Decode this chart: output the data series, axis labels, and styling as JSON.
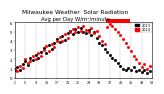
{
  "title": "Milwaukee Weather  Solar Radiation",
  "subtitle": "Avg per Day W/m²/minute",
  "title_fontsize": 4.2,
  "subtitle_fontsize": 3.8,
  "background_color": "#ffffff",
  "plot_bg_color": "#ffffff",
  "grid_color": "#aaaaaa",
  "x_min": 1,
  "x_max": 53,
  "y_min": 0,
  "y_max": 6,
  "series": [
    {
      "label": "2013",
      "color": "#000000",
      "marker": "s",
      "markersize": 1.0,
      "x": [
        1,
        2,
        3,
        4,
        5,
        6,
        7,
        8,
        9,
        10,
        11,
        12,
        13,
        14,
        15,
        16,
        17,
        18,
        19,
        20,
        21,
        22,
        23,
        24,
        25,
        26,
        27,
        28,
        29,
        30,
        31,
        32,
        33,
        34,
        35,
        36,
        37,
        38,
        39,
        40,
        41,
        42,
        43,
        44,
        45,
        46,
        47,
        48,
        49,
        50,
        51,
        52
      ],
      "y": [
        0.8,
        1.2,
        0.9,
        1.5,
        1.8,
        1.4,
        2.2,
        1.9,
        2.5,
        2.1,
        2.8,
        3.2,
        2.7,
        3.5,
        3.1,
        3.8,
        4.2,
        3.9,
        4.5,
        4.1,
        4.8,
        5.1,
        4.7,
        5.3,
        4.9,
        5.4,
        5.0,
        4.8,
        5.2,
        4.6,
        4.9,
        4.3,
        3.8,
        3.5,
        3.1,
        2.8,
        2.5,
        2.1,
        1.9,
        1.6,
        1.3,
        1.0,
        0.9,
        1.1,
        0.8,
        1.2,
        0.7,
        0.9,
        0.6,
        0.8,
        0.5,
        0.7
      ]
    },
    {
      "label": "2014",
      "color": "#ff0000",
      "marker": "s",
      "markersize": 1.0,
      "x": [
        1,
        2,
        3,
        4,
        5,
        6,
        7,
        8,
        9,
        10,
        11,
        12,
        13,
        14,
        15,
        16,
        17,
        18,
        19,
        20,
        21,
        22,
        23,
        24,
        25,
        26,
        27,
        28,
        29,
        30,
        31,
        32,
        33,
        34,
        35,
        36,
        37,
        38,
        39,
        40,
        41,
        42,
        43,
        44,
        45,
        46,
        47,
        48,
        49,
        50,
        51,
        52
      ],
      "y": [
        1.0,
        0.7,
        1.3,
        1.1,
        2.0,
        1.6,
        1.8,
        2.4,
        2.0,
        2.7,
        2.4,
        3.0,
        3.4,
        2.9,
        3.7,
        3.3,
        4.0,
        4.4,
        4.0,
        4.7,
        4.3,
        5.0,
        5.3,
        4.9,
        5.5,
        5.1,
        5.6,
        5.2,
        5.0,
        5.4,
        4.8,
        5.1,
        4.5,
        4.0,
        3.7,
        5.5,
        5.8,
        5.6,
        5.3,
        5.0,
        4.6,
        4.2,
        3.8,
        3.3,
        2.9,
        2.4,
        2.0,
        1.6,
        1.2,
        1.5,
        1.0,
        1.3
      ]
    }
  ],
  "legend_labels": [
    "2013",
    "2014"
  ],
  "legend_colors": [
    "#000000",
    "#ff0000"
  ],
  "xtick_positions": [
    1,
    5,
    9,
    13,
    17,
    21,
    25,
    29,
    33,
    37,
    41,
    45,
    49,
    53
  ],
  "xtick_labels": [
    "1",
    "5",
    "9",
    "13",
    "17",
    "21",
    "25",
    "29",
    "33",
    "37",
    "41",
    "45",
    "49",
    "53"
  ],
  "vgrid_positions": [
    5,
    9,
    13,
    17,
    21,
    25,
    29,
    33,
    37,
    41,
    45,
    49
  ],
  "highlight_x_start": 36,
  "highlight_x_end": 44,
  "highlight_color": "#ff0000",
  "highlight_y": 5.95
}
